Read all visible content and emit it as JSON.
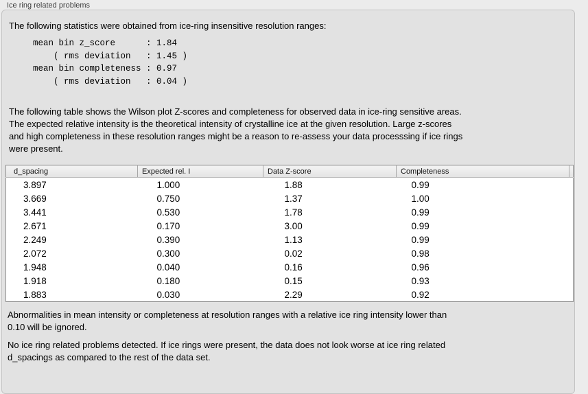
{
  "panel": {
    "title": "Ice ring related problems"
  },
  "intro": {
    "text": "The following statistics were obtained from ice-ring insensitive resolution ranges:"
  },
  "stats_block": {
    "lines": [
      "mean bin z_score      : 1.84",
      "    ( rms deviation   : 1.45 )",
      "mean bin completeness : 0.97",
      "    ( rms deviation   : 0.04 )"
    ]
  },
  "description": {
    "lines": [
      "The following table shows the Wilson plot Z-scores and completeness for observed data in ice-ring sensitive areas.",
      "The expected relative intensity is the theoretical intensity of crystalline ice at the given resolution. Large z-scores",
      "and high completeness in these resolution ranges might be a reason to re-assess your data processsing if ice rings",
      "were present."
    ]
  },
  "table": {
    "columns": [
      "d_spacing",
      "Expected rel. I",
      "Data Z-score",
      "Completeness"
    ],
    "rows": [
      [
        "3.897",
        "1.000",
        "1.88",
        "0.99"
      ],
      [
        "3.669",
        "0.750",
        "1.37",
        "1.00"
      ],
      [
        "3.441",
        "0.530",
        "1.78",
        "0.99"
      ],
      [
        "2.671",
        "0.170",
        "3.00",
        "0.99"
      ],
      [
        "2.249",
        "0.390",
        "1.13",
        "0.99"
      ],
      [
        "2.072",
        "0.300",
        "0.02",
        "0.98"
      ],
      [
        "1.948",
        "0.040",
        "0.16",
        "0.96"
      ],
      [
        "1.918",
        "0.180",
        "0.15",
        "0.93"
      ],
      [
        "1.883",
        "0.030",
        "2.29",
        "0.92"
      ]
    ]
  },
  "notes": {
    "ignore": {
      "lines": [
        "Abnormalities in mean intensity or completeness at resolution ranges with a relative ice ring intensity lower than",
        "0.10 will be ignored."
      ]
    },
    "conclusion": {
      "lines": [
        "No ice ring related problems detected. If ice rings were present, the data does not look worse at ice ring related",
        "d_spacings as compared to the rest of the data set."
      ]
    }
  },
  "colors": {
    "window_bg": "#ececec",
    "panel_bg": "#e2e2e2",
    "panel_border": "#c3c3c3",
    "table_bg": "#ffffff",
    "table_header_bg": "#e9e9e9",
    "table_border": "#8c8c8c",
    "text": "#000000"
  }
}
